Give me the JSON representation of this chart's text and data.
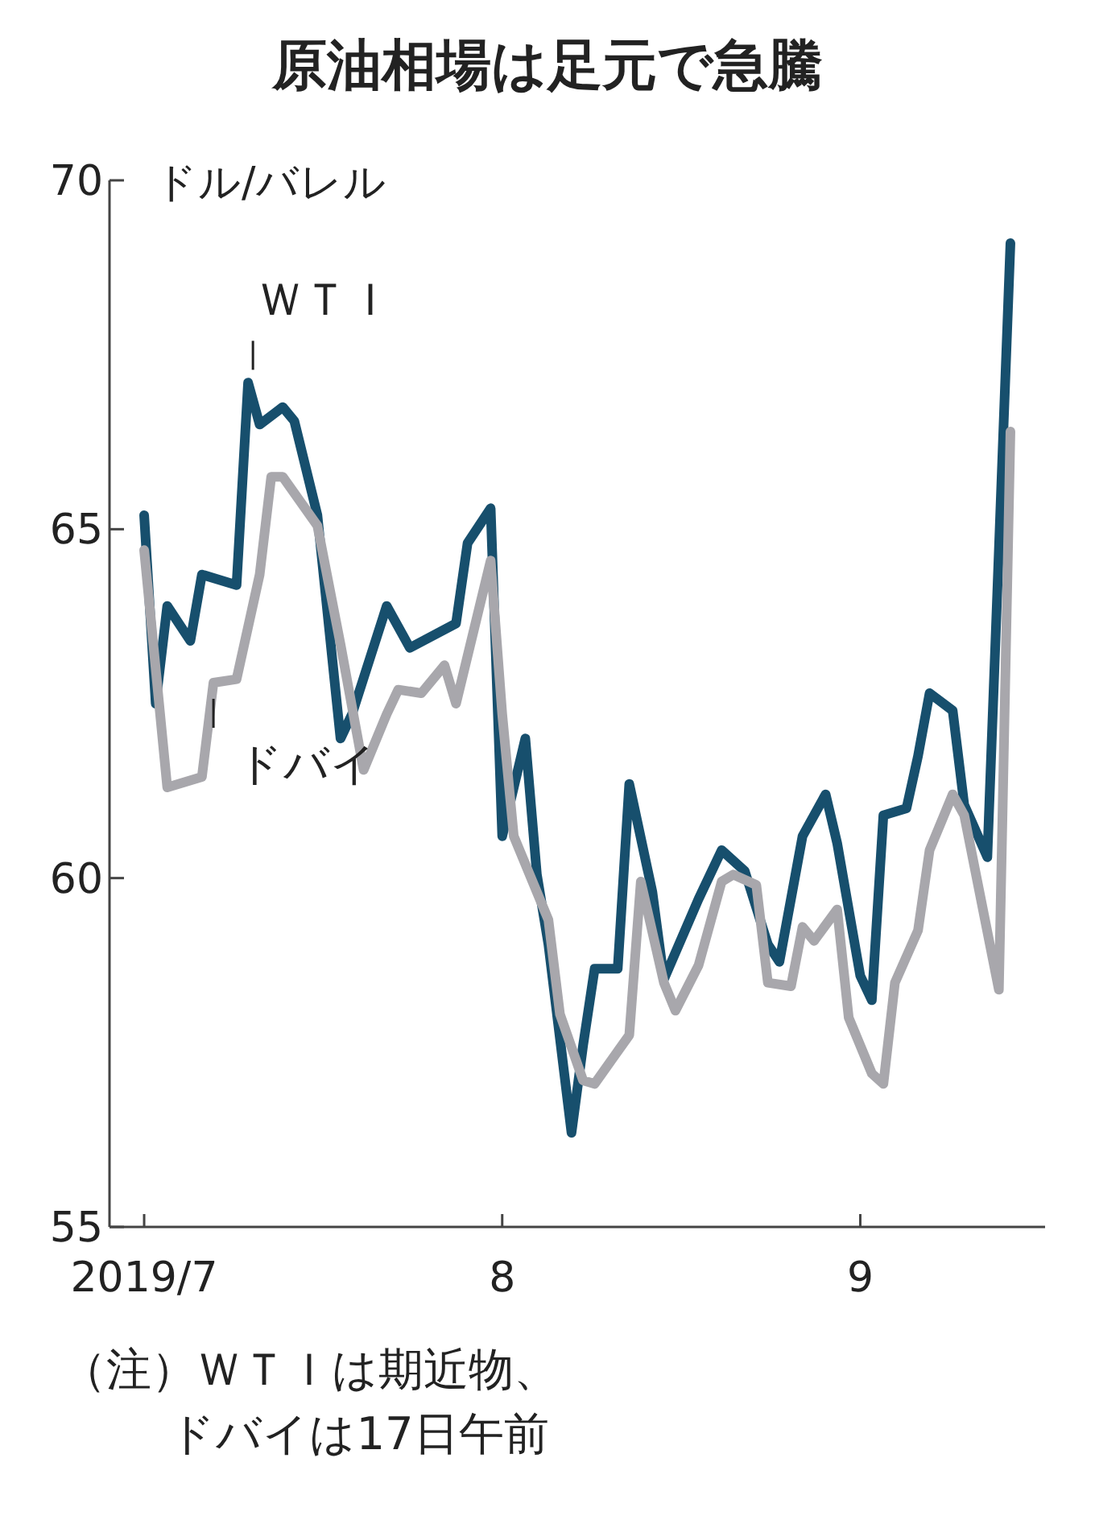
{
  "chart_data": {
    "type": "line",
    "title": "原油相場は足元で急騰",
    "ylabel": "ドル/バレル",
    "annotations": [
      "（注）ＷＴＩは期近物、",
      "ドバイは17日午前"
    ],
    "xlim": [
      "2019-06-28",
      "2019-09-17"
    ],
    "ylim": [
      55,
      70
    ],
    "yticks": [
      55,
      60,
      65,
      70
    ],
    "xticks": [
      {
        "value": "2019-07-01",
        "label": "2019/7"
      },
      {
        "value": "2019-08-01",
        "label": "8"
      },
      {
        "value": "2019-09-01",
        "label": "9"
      }
    ],
    "series": [
      {
        "name": "ＷＴＩ",
        "color": "#174f6d",
        "x": [
          "2019-07-01",
          "2019-07-02",
          "2019-07-03",
          "2019-07-05",
          "2019-07-06",
          "2019-07-09",
          "2019-07-10",
          "2019-07-11",
          "2019-07-13",
          "2019-07-14",
          "2019-07-16",
          "2019-07-18",
          "2019-07-19",
          "2019-07-22",
          "2019-07-24",
          "2019-07-28",
          "2019-07-29",
          "2019-07-31",
          "2019-08-01",
          "2019-08-03",
          "2019-08-04",
          "2019-08-05",
          "2019-08-07",
          "2019-08-08",
          "2019-08-09",
          "2019-08-11",
          "2019-08-12",
          "2019-08-14",
          "2019-08-15",
          "2019-08-18",
          "2019-08-20",
          "2019-08-22",
          "2019-08-24",
          "2019-08-25",
          "2019-08-27",
          "2019-08-29",
          "2019-08-30",
          "2019-09-01",
          "2019-09-02",
          "2019-09-03",
          "2019-09-05",
          "2019-09-06",
          "2019-09-07",
          "2019-09-09",
          "2019-09-10",
          "2019-09-12",
          "2019-09-14"
        ],
        "values": [
          65.2,
          62.5,
          63.9,
          63.4,
          64.35,
          64.2,
          67.1,
          66.5,
          66.75,
          66.55,
          65.2,
          62.0,
          62.35,
          63.9,
          63.3,
          63.65,
          64.8,
          65.3,
          60.6,
          62.0,
          60.05,
          59.05,
          56.35,
          57.6,
          58.7,
          58.7,
          61.35,
          59.8,
          58.55,
          59.7,
          60.4,
          60.1,
          59.05,
          58.8,
          60.6,
          61.2,
          60.5,
          58.6,
          58.25,
          60.9,
          61.0,
          61.75,
          62.65,
          62.4,
          61.05,
          60.3,
          69.1
        ]
      },
      {
        "name": "ドバイ",
        "color": "#a8a7ac",
        "x": [
          "2019-07-01",
          "2019-07-03",
          "2019-07-06",
          "2019-07-07",
          "2019-07-09",
          "2019-07-11",
          "2019-07-12",
          "2019-07-13",
          "2019-07-16",
          "2019-07-18",
          "2019-07-20",
          "2019-07-22",
          "2019-07-23",
          "2019-07-25",
          "2019-07-27",
          "2019-07-28",
          "2019-07-31",
          "2019-08-01",
          "2019-08-02",
          "2019-08-05",
          "2019-08-06",
          "2019-08-08",
          "2019-08-09",
          "2019-08-12",
          "2019-08-13",
          "2019-08-15",
          "2019-08-16",
          "2019-08-18",
          "2019-08-20",
          "2019-08-21",
          "2019-08-23",
          "2019-08-24",
          "2019-08-26",
          "2019-08-27",
          "2019-08-28",
          "2019-08-30",
          "2019-08-31",
          "2019-09-02",
          "2019-09-03",
          "2019-09-04",
          "2019-09-06",
          "2019-09-07",
          "2019-09-09",
          "2019-09-10",
          "2019-09-13",
          "2019-09-14"
        ],
        "values": [
          64.7,
          61.3,
          61.45,
          62.8,
          62.85,
          64.35,
          65.75,
          65.75,
          65.05,
          63.35,
          61.55,
          62.35,
          62.7,
          62.65,
          63.05,
          62.5,
          64.55,
          62.35,
          60.6,
          59.4,
          58.05,
          57.1,
          57.05,
          57.75,
          59.95,
          58.5,
          58.1,
          58.75,
          59.95,
          60.05,
          59.9,
          58.5,
          58.45,
          59.3,
          59.1,
          59.55,
          58.0,
          57.2,
          57.05,
          58.5,
          59.25,
          60.4,
          61.2,
          60.9,
          58.4,
          66.4
        ]
      }
    ]
  }
}
